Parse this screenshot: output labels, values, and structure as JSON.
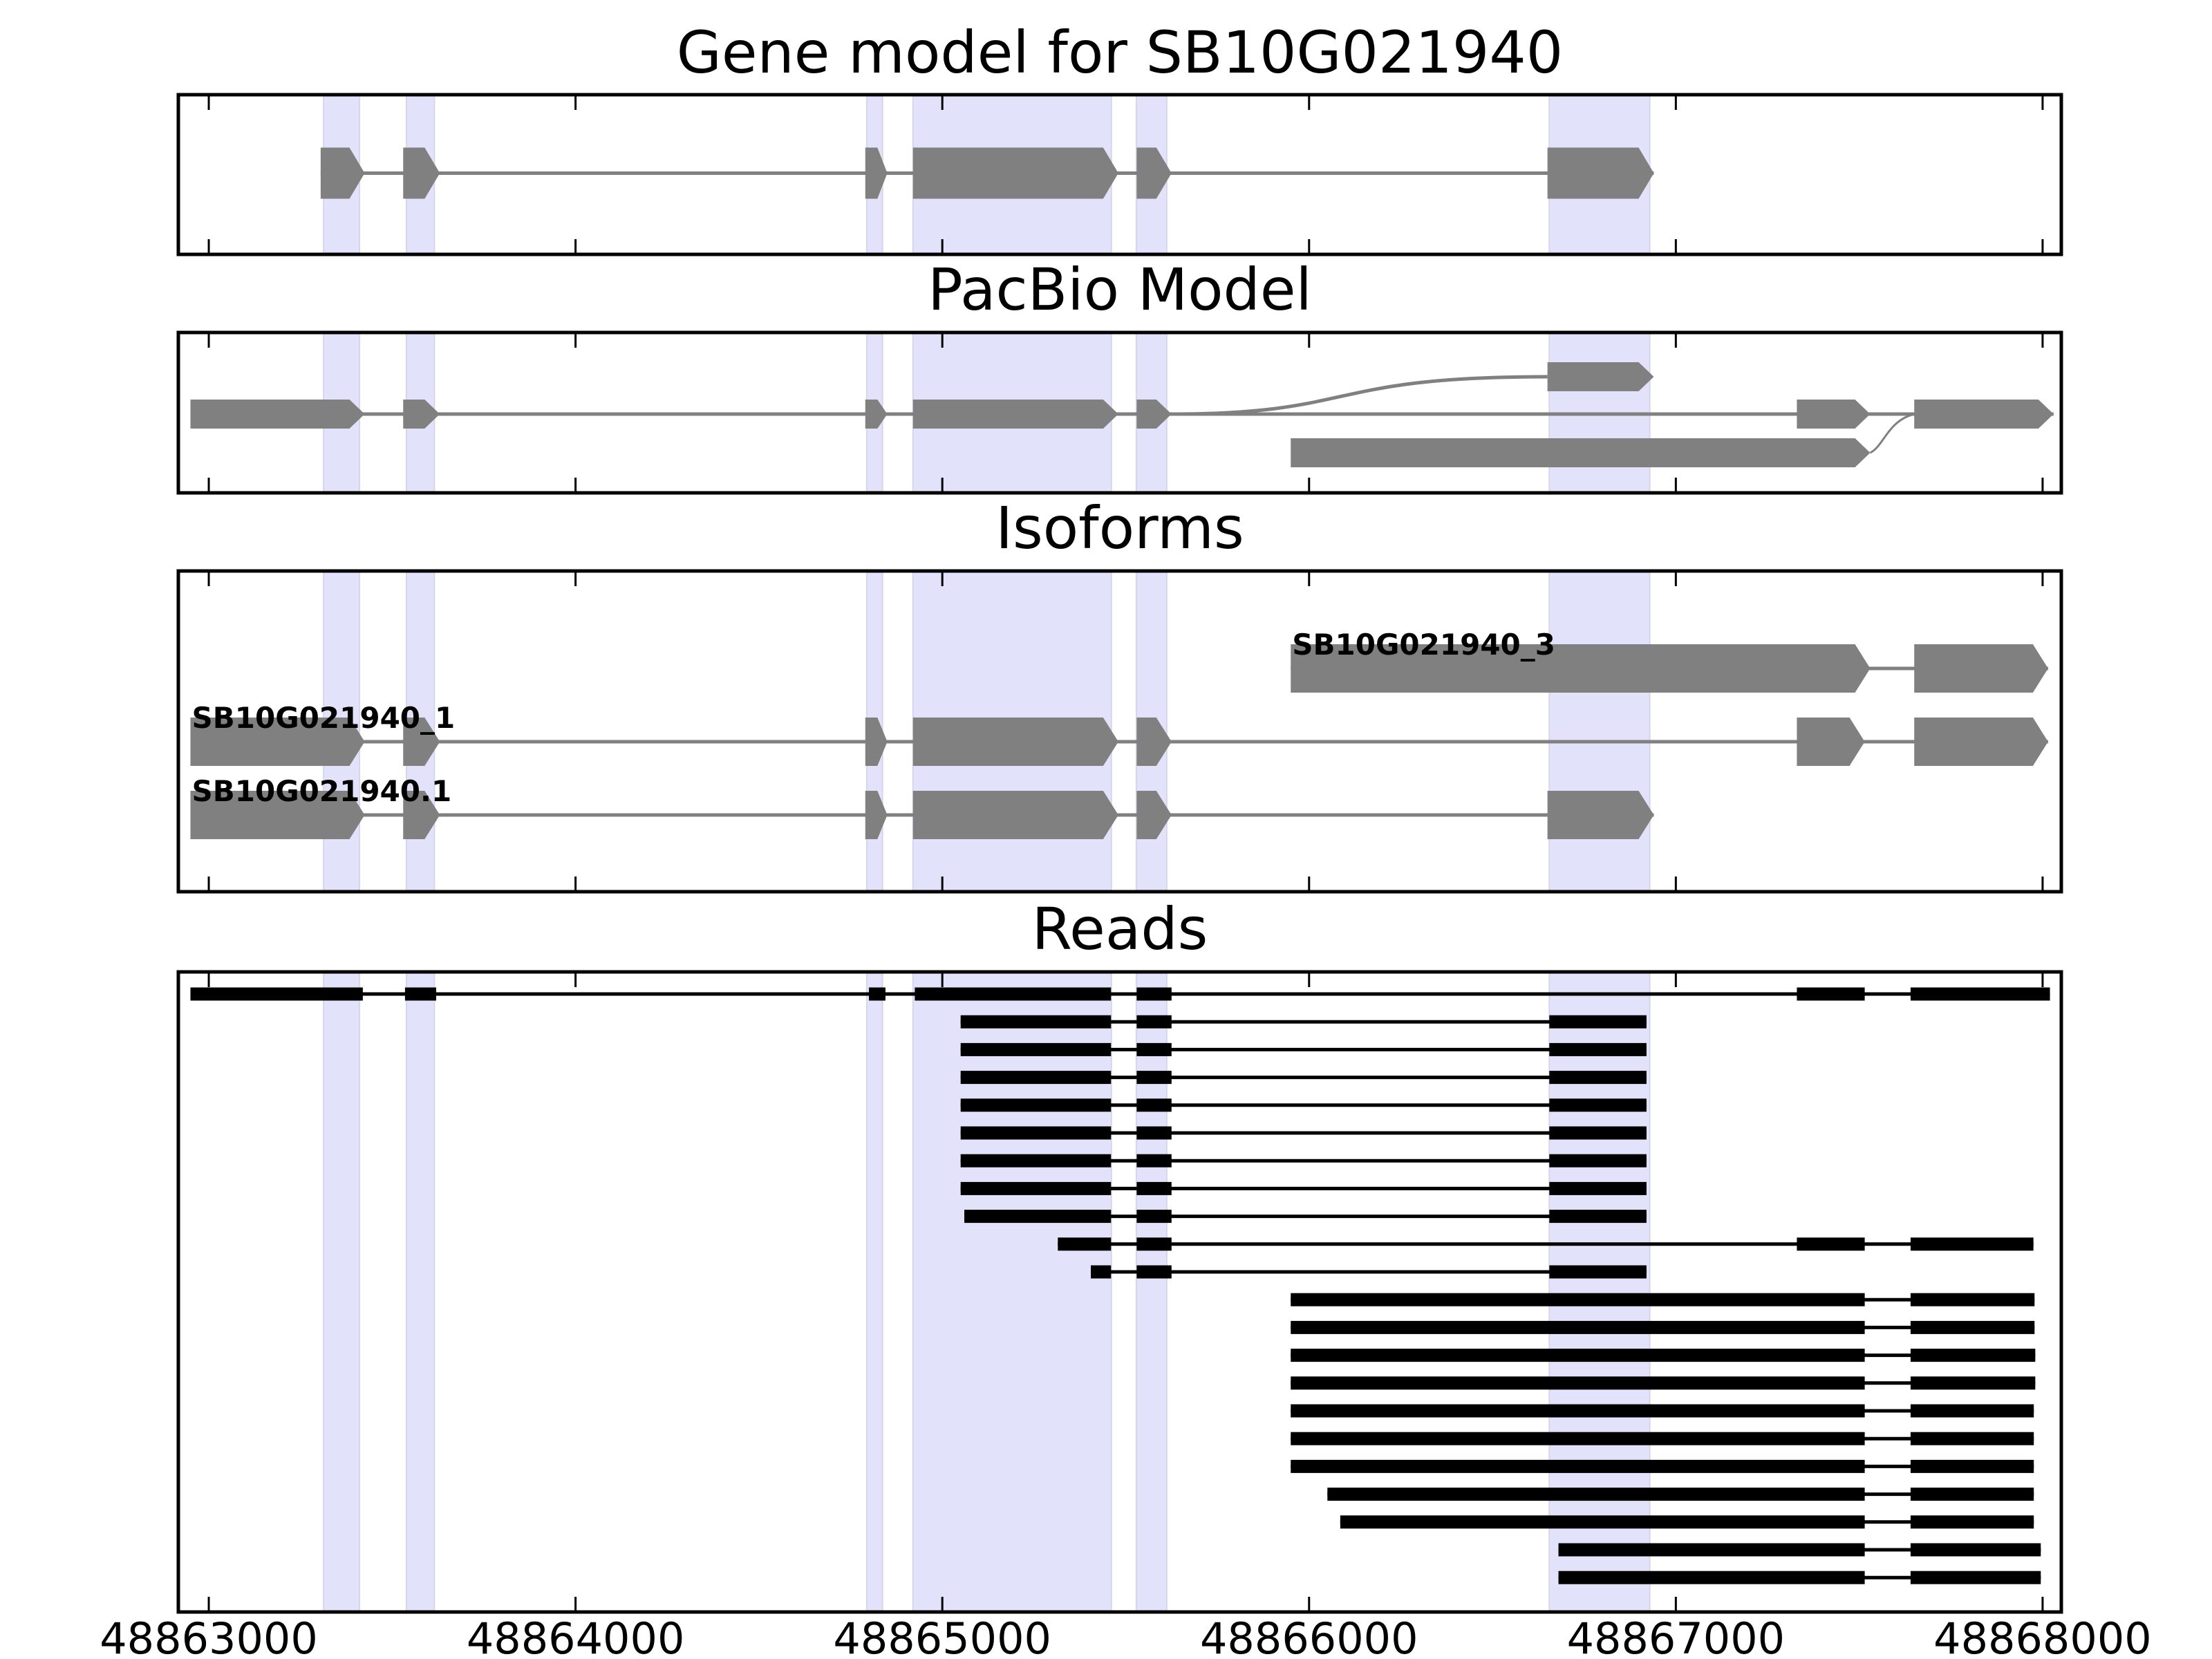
{
  "chart_data": {
    "type": "gene-track",
    "xlim": [
      48862917,
      48868051
    ],
    "x_ticks": [
      48863000,
      48864000,
      48865000,
      48866000,
      48867000,
      48868000
    ],
    "x_tick_labels": [
      "48863000",
      "48864000",
      "48865000",
      "48866000",
      "48867000",
      "48868000"
    ],
    "colors": {
      "feature_fill": "#808080",
      "read_fill": "#000000",
      "highlight": "#e2e2fb",
      "frame": "#000000"
    },
    "highlight_regions": [
      [
        48863313,
        48863411
      ],
      [
        48863539,
        48863615
      ],
      [
        48864794,
        48864837
      ],
      [
        48864920,
        48865461
      ],
      [
        48865529,
        48865612
      ],
      [
        48866655,
        48866929
      ]
    ],
    "panels": [
      {
        "title": "Gene model for SB10G021940",
        "kind": "gene_model",
        "tracks": [
          {
            "label": "",
            "exons": [
              [
                48863305,
                48863425
              ],
              [
                48863530,
                48863630
              ],
              [
                48864790,
                48864850
              ],
              [
                48864920,
                48865480
              ],
              [
                48865530,
                48865625
              ],
              [
                48866650,
                48866940
              ]
            ]
          }
        ]
      },
      {
        "title": "PacBio Model",
        "kind": "splice_graph",
        "tracks": [
          {
            "label": "",
            "exons": [
              [
                48862950,
                48863425
              ],
              [
                48863530,
                48863630
              ],
              [
                48864790,
                48864850
              ],
              [
                48864920,
                48865480
              ],
              [
                48865530,
                48865625
              ],
              [
                48867330,
                48867530
              ],
              [
                48867650,
                48868030
              ]
            ]
          },
          {
            "label": "",
            "exons": [
              [
                48866650,
                48866940
              ]
            ],
            "branch_from": 48865625
          },
          {
            "label": "",
            "exons": [
              [
                48865950,
                48867530
              ]
            ],
            "branch_to": 48867650
          }
        ]
      },
      {
        "title": "Isoforms",
        "kind": "isoforms",
        "tracks": [
          {
            "label": "SB10G021940_3",
            "exons": [
              [
                48865950,
                48867530
              ],
              [
                48867650,
                48868015
              ]
            ]
          },
          {
            "label": "SB10G021940_1",
            "exons": [
              [
                48862950,
                48863425
              ],
              [
                48863530,
                48863630
              ],
              [
                48864790,
                48864850
              ],
              [
                48864920,
                48865480
              ],
              [
                48865530,
                48865625
              ],
              [
                48867330,
                48867515
              ],
              [
                48867650,
                48868015
              ]
            ]
          },
          {
            "label": "SB10G021940.1",
            "exons": [
              [
                48862950,
                48863425
              ],
              [
                48863530,
                48863630
              ],
              [
                48864790,
                48864850
              ],
              [
                48864920,
                48865480
              ],
              [
                48865530,
                48865625
              ],
              [
                48866650,
                48866940
              ]
            ]
          }
        ]
      },
      {
        "title": "Reads",
        "kind": "reads",
        "tracks": [
          {
            "label": "",
            "exons": [
              [
                48862950,
                48863420
              ],
              [
                48863535,
                48863620
              ],
              [
                48864800,
                48864845
              ],
              [
                48864925,
                48865460
              ],
              [
                48865530,
                48865625
              ],
              [
                48867330,
                48867515
              ],
              [
                48867640,
                48868020
              ]
            ]
          },
          {
            "label": "",
            "exons": [
              [
                48865050,
                48865460
              ],
              [
                48865530,
                48865625
              ],
              [
                48866655,
                48866920
              ]
            ]
          },
          {
            "label": "",
            "exons": [
              [
                48865050,
                48865460
              ],
              [
                48865530,
                48865625
              ],
              [
                48866655,
                48866920
              ]
            ]
          },
          {
            "label": "",
            "exons": [
              [
                48865050,
                48865460
              ],
              [
                48865530,
                48865625
              ],
              [
                48866655,
                48866920
              ]
            ]
          },
          {
            "label": "",
            "exons": [
              [
                48865050,
                48865460
              ],
              [
                48865530,
                48865625
              ],
              [
                48866655,
                48866920
              ]
            ]
          },
          {
            "label": "",
            "exons": [
              [
                48865050,
                48865460
              ],
              [
                48865530,
                48865625
              ],
              [
                48866655,
                48866920
              ]
            ]
          },
          {
            "label": "",
            "exons": [
              [
                48865050,
                48865460
              ],
              [
                48865530,
                48865625
              ],
              [
                48866655,
                48866920
              ]
            ]
          },
          {
            "label": "",
            "exons": [
              [
                48865050,
                48865460
              ],
              [
                48865530,
                48865625
              ],
              [
                48866655,
                48866920
              ]
            ]
          },
          {
            "label": "",
            "exons": [
              [
                48865060,
                48865460
              ],
              [
                48865530,
                48865625
              ],
              [
                48866655,
                48866920
              ]
            ]
          },
          {
            "label": "",
            "exons": [
              [
                48865315,
                48865460
              ],
              [
                48865530,
                48865625
              ],
              [
                48867330,
                48867515
              ],
              [
                48867640,
                48867975
              ]
            ]
          },
          {
            "label": "",
            "exons": [
              [
                48865405,
                48865460
              ],
              [
                48865530,
                48865625
              ],
              [
                48866655,
                48866920
              ]
            ]
          },
          {
            "label": "",
            "exons": [
              [
                48865950,
                48867515
              ],
              [
                48867640,
                48867978
              ]
            ]
          },
          {
            "label": "",
            "exons": [
              [
                48865950,
                48867515
              ],
              [
                48867640,
                48867978
              ]
            ]
          },
          {
            "label": "",
            "exons": [
              [
                48865950,
                48867515
              ],
              [
                48867640,
                48867980
              ]
            ]
          },
          {
            "label": "",
            "exons": [
              [
                48865950,
                48867515
              ],
              [
                48867640,
                48867980
              ]
            ]
          },
          {
            "label": "",
            "exons": [
              [
                48865950,
                48867515
              ],
              [
                48867640,
                48867976
              ]
            ]
          },
          {
            "label": "",
            "exons": [
              [
                48865950,
                48867515
              ],
              [
                48867640,
                48867976
              ]
            ]
          },
          {
            "label": "",
            "exons": [
              [
                48865950,
                48867515
              ],
              [
                48867640,
                48867976
              ]
            ]
          },
          {
            "label": "",
            "exons": [
              [
                48866050,
                48867515
              ],
              [
                48867640,
                48867976
              ]
            ]
          },
          {
            "label": "",
            "exons": [
              [
                48866085,
                48867515
              ],
              [
                48867640,
                48867976
              ]
            ]
          },
          {
            "label": "",
            "exons": [
              [
                48866680,
                48867515
              ],
              [
                48867640,
                48867995
              ]
            ]
          },
          {
            "label": "",
            "exons": [
              [
                48866680,
                48867515
              ],
              [
                48867640,
                48867995
              ]
            ]
          }
        ]
      }
    ]
  }
}
